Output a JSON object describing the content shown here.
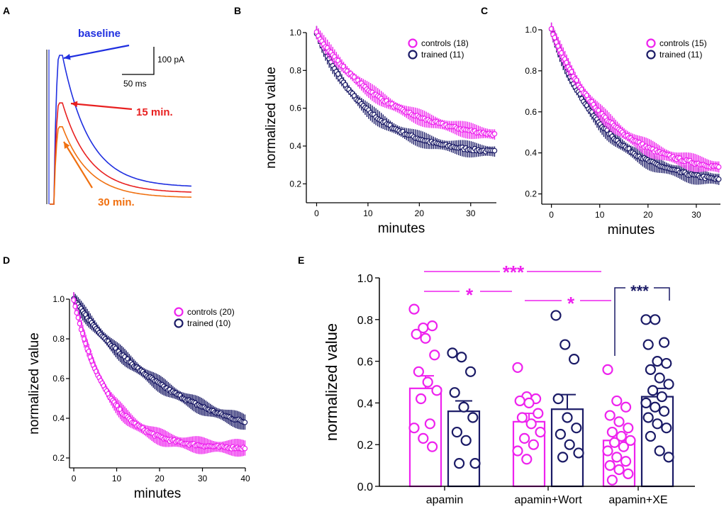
{
  "colors": {
    "controls": "#ee22ee",
    "trained": "#1a1a66",
    "baseline": "#1f2fe0",
    "min15": "#e82020",
    "min30": "#f07010",
    "axis": "#000000"
  },
  "panelA": {
    "label": "A",
    "scale_current": "100 pA",
    "scale_time": "50 ms",
    "traces": [
      {
        "name": "baseline",
        "label": "baseline",
        "peak_rel": 1.0
      },
      {
        "name": "min15",
        "label": "15 min.",
        "peak_rel": 0.68
      },
      {
        "name": "min30",
        "label": "30 min.",
        "peak_rel": 0.52
      }
    ]
  },
  "chart_data": [
    {
      "panel": "B",
      "type": "scatter",
      "xlabel": "minutes",
      "ylabel": "normalized value",
      "xlim": [
        -2,
        35
      ],
      "ylim": [
        0.1,
        1.0
      ],
      "xticks": [
        0,
        10,
        20,
        30
      ],
      "yticks": [
        0.2,
        0.4,
        0.6,
        0.8,
        1.0
      ],
      "xtick_labels": [
        "0",
        "10",
        "20",
        "30"
      ],
      "ytick_labels": [
        "0.2",
        "0.4",
        "0.6",
        "0.8",
        "1.0"
      ],
      "legend": [
        "controls (18)",
        "trained (11)"
      ],
      "series": [
        {
          "name": "controls",
          "n": 18,
          "start": 1.0,
          "end_at_35": 0.46,
          "tau_min": 14
        },
        {
          "name": "trained",
          "n": 11,
          "start": 1.0,
          "end_at_35": 0.37,
          "tau_min": 10
        }
      ]
    },
    {
      "panel": "C",
      "type": "scatter",
      "xlabel": "minutes",
      "ylabel": "",
      "xlim": [
        -2,
        35
      ],
      "ylim": [
        0.15,
        1.0
      ],
      "xticks": [
        0,
        10,
        20,
        30
      ],
      "yticks": [
        0.2,
        0.4,
        0.6,
        0.8,
        1.0
      ],
      "xtick_labels": [
        "0",
        "10",
        "20",
        "30"
      ],
      "ytick_labels": [
        "0.2",
        "0.4",
        "0.6",
        "0.8",
        "1.0"
      ],
      "legend": [
        "controls (15)",
        "trained (11)"
      ],
      "series": [
        {
          "name": "controls",
          "n": 15,
          "start": 1.0,
          "end_at_35": 0.33,
          "tau_min": 12
        },
        {
          "name": "trained",
          "n": 11,
          "start": 1.0,
          "end_at_35": 0.27,
          "tau_min": 11
        }
      ]
    },
    {
      "panel": "D",
      "type": "scatter",
      "xlabel": "minutes",
      "ylabel": "normalized value",
      "xlim": [
        -1,
        40
      ],
      "ylim": [
        0.15,
        1.0
      ],
      "xticks": [
        0,
        10,
        20,
        30,
        40
      ],
      "yticks": [
        0.2,
        0.4,
        0.6,
        0.8,
        1.0
      ],
      "xtick_labels": [
        "0",
        "10",
        "20",
        "30",
        "40"
      ],
      "ytick_labels": [
        "0.2",
        "0.4",
        "0.6",
        "0.8",
        "1.0"
      ],
      "legend": [
        "controls (20)",
        "trained (10)"
      ],
      "series": [
        {
          "name": "controls",
          "n": 20,
          "start": 1.0,
          "end_at_40": 0.25,
          "tau_min": 8
        },
        {
          "name": "trained",
          "n": 10,
          "start": 1.0,
          "end_at_40": 0.38,
          "tau_min": 25
        }
      ]
    },
    {
      "panel": "E",
      "type": "bar",
      "ylabel": "normalized value",
      "ylim": [
        0.0,
        1.0
      ],
      "yticks": [
        0.0,
        0.2,
        0.4,
        0.6,
        0.8,
        1.0
      ],
      "ytick_labels": [
        "0.0",
        "0.2",
        "0.4",
        "0.6",
        "0.8",
        "1.0"
      ],
      "categories": [
        "apamin",
        "apamin+Wort",
        "apamin+XE"
      ],
      "series": [
        {
          "name": "controls",
          "means": [
            0.47,
            0.31,
            0.22
          ],
          "sem": [
            0.06,
            0.04,
            0.03
          ],
          "points": [
            [
              0.85,
              0.76,
              0.77,
              0.73,
              0.71,
              0.63,
              0.55,
              0.5,
              0.46,
              0.42,
              0.3,
              0.28,
              0.23,
              0.19
            ],
            [
              0.57,
              0.43,
              0.42,
              0.41,
              0.4,
              0.35,
              0.33,
              0.3,
              0.26,
              0.23,
              0.2,
              0.17,
              0.13
            ],
            [
              0.56,
              0.41,
              0.38,
              0.34,
              0.31,
              0.28,
              0.26,
              0.24,
              0.22,
              0.21,
              0.19,
              0.17,
              0.14,
              0.12,
              0.1,
              0.08,
              0.06,
              0.03
            ]
          ]
        },
        {
          "name": "trained",
          "means": [
            0.36,
            0.37,
            0.43
          ],
          "sem": [
            0.05,
            0.07,
            0.04
          ],
          "points": [
            [
              0.64,
              0.62,
              0.55,
              0.45,
              0.38,
              0.33,
              0.26,
              0.22,
              0.11,
              0.11
            ],
            [
              0.82,
              0.68,
              0.61,
              0.42,
              0.33,
              0.28,
              0.25,
              0.2,
              0.16,
              0.14
            ],
            [
              0.8,
              0.8,
              0.69,
              0.68,
              0.6,
              0.59,
              0.56,
              0.52,
              0.49,
              0.46,
              0.43,
              0.4,
              0.38,
              0.36,
              0.33,
              0.3,
              0.28,
              0.24,
              0.17,
              0.14
            ]
          ]
        }
      ],
      "significance": [
        {
          "label": "***",
          "between": "apamin controls vs apamin+XE controls",
          "color": "controls"
        },
        {
          "label": "*",
          "between": "apamin controls vs apamin+Wort controls",
          "color": "controls"
        },
        {
          "label": "*",
          "between": "apamin+Wort controls vs apamin+XE controls",
          "color": "controls"
        },
        {
          "label": "***",
          "between": "apamin+XE controls vs apamin+XE trained",
          "color": "trained"
        }
      ]
    }
  ]
}
